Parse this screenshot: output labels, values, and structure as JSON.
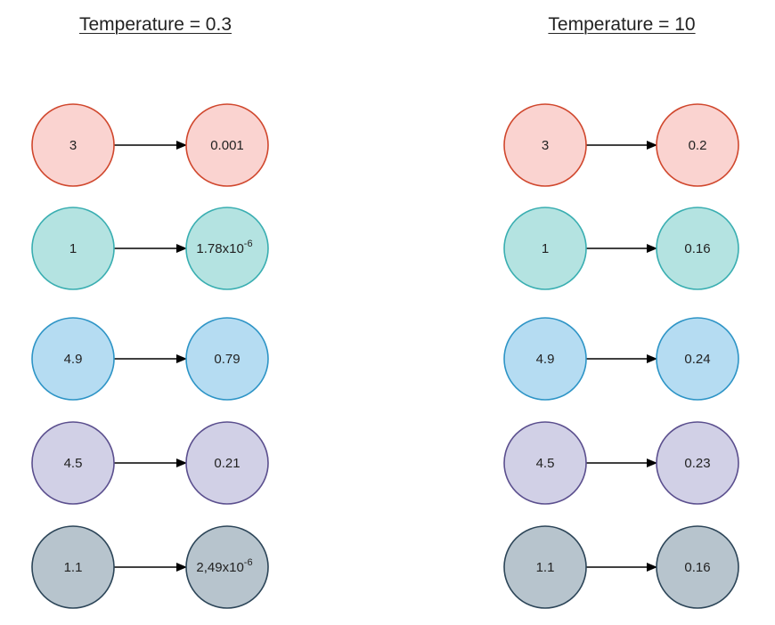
{
  "panels": [
    {
      "title": "Temperature = 0.3",
      "rows": [
        {
          "input": "3",
          "output": "0.001",
          "output_exp": "",
          "color": "red"
        },
        {
          "input": "1",
          "output": "1.78x10",
          "output_exp": "-6",
          "color": "teal"
        },
        {
          "input": "4.9",
          "output": "0.79",
          "output_exp": "",
          "color": "blue"
        },
        {
          "input": "4.5",
          "output": "0.21",
          "output_exp": "",
          "color": "purple"
        },
        {
          "input": "1.1",
          "output": "2,49x10",
          "output_exp": "-6",
          "color": "slate"
        }
      ]
    },
    {
      "title": "Temperature = 10",
      "rows": [
        {
          "input": "3",
          "output": "0.2",
          "output_exp": "",
          "color": "red"
        },
        {
          "input": "1",
          "output": "0.16",
          "output_exp": "",
          "color": "teal"
        },
        {
          "input": "4.9",
          "output": "0.24",
          "output_exp": "",
          "color": "blue"
        },
        {
          "input": "4.5",
          "output": "0.23",
          "output_exp": "",
          "color": "purple"
        },
        {
          "input": "1.1",
          "output": "0.16",
          "output_exp": "",
          "color": "slate"
        }
      ]
    }
  ],
  "colors": {
    "red": {
      "fill": "#fad3d0",
      "stroke": "#d0472d"
    },
    "teal": {
      "fill": "#b4e3e1",
      "stroke": "#39aeb1"
    },
    "blue": {
      "fill": "#b5dcf2",
      "stroke": "#2d94c6"
    },
    "purple": {
      "fill": "#d1d0e6",
      "stroke": "#5b4f8e"
    },
    "slate": {
      "fill": "#b7c4cd",
      "stroke": "#2c4558"
    }
  }
}
